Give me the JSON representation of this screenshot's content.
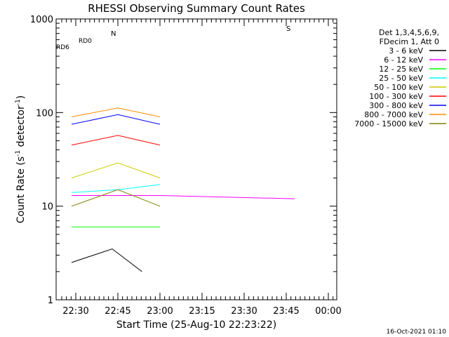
{
  "chart_data": {
    "type": "line",
    "title": "RHESSI Observing Summary Count Rates",
    "xlabel": "Start Time (25-Aug-10 22:23:22)",
    "ylabel_main": "Count Rate (s",
    "ylabel_sup1": "-1",
    "ylabel_mid": " detector",
    "ylabel_sup2": "-1",
    "ylabel_end": ")",
    "yscale": "log",
    "ylim": [
      1,
      1000
    ],
    "xlim_min": [
      0,
      100
    ],
    "x_ticks": [
      {
        "t": 7,
        "label": "22:30"
      },
      {
        "t": 22,
        "label": "22:45"
      },
      {
        "t": 37,
        "label": "23:00"
      },
      {
        "t": 52,
        "label": "23:15"
      },
      {
        "t": 67,
        "label": "23:30"
      },
      {
        "t": 82,
        "label": "23:45"
      },
      {
        "t": 97,
        "label": "00:00"
      }
    ],
    "y_ticks": [
      {
        "v": 1,
        "label": "1"
      },
      {
        "v": 10,
        "label": "10"
      },
      {
        "v": 100,
        "label": "100"
      },
      {
        "v": 1000,
        "label": "1000"
      }
    ],
    "legend_header": [
      "Det 1,3,4,5,6,9,",
      "FDecim 1, Att 0"
    ],
    "footer_date": "16-Oct-2021 01:10",
    "flag_labels": {
      "night": "N",
      "saa": "S",
      "rd0": "RD0",
      "rd6": "RD6"
    },
    "series": [
      {
        "name": "3 - 6 keV",
        "color": "#000000",
        "segments": [
          {
            "x": [
              5.5,
              20,
              30.6
            ],
            "y": [
              2.5,
              3.5,
              2.0
            ]
          }
        ]
      },
      {
        "name": "6 - 12 keV",
        "color": "#ff00ff",
        "segments": [
          {
            "x": [
              5.5,
              37,
              85
            ],
            "y": [
              13,
              13,
              12
            ]
          }
        ]
      },
      {
        "name": "12 - 25 keV",
        "color": "#00ff00",
        "segments": [
          {
            "x": [
              5.5,
              22,
              37
            ],
            "y": [
              6,
              6,
              6
            ]
          }
        ]
      },
      {
        "name": "25 - 50 keV",
        "color": "#00ffff",
        "segments": [
          {
            "x": [
              5.5,
              22,
              37
            ],
            "y": [
              14,
              15,
              17
            ]
          }
        ]
      },
      {
        "name": "50 - 100 keV",
        "color": "#cccc00",
        "segments": [
          {
            "x": [
              5.5,
              22,
              37
            ],
            "y": [
              20,
              29,
              20
            ]
          }
        ]
      },
      {
        "name": "100 - 300 keV",
        "color": "#ff0000",
        "segments": [
          {
            "x": [
              5.5,
              22,
              37
            ],
            "y": [
              45,
              57,
              45
            ]
          }
        ]
      },
      {
        "name": "300 - 800 keV",
        "color": "#0000ff",
        "segments": [
          {
            "x": [
              5.5,
              22,
              37
            ],
            "y": [
              75,
              95,
              75
            ]
          }
        ]
      },
      {
        "name": "800 - 7000 keV",
        "color": "#ff8c00",
        "segments": [
          {
            "x": [
              5.5,
              22,
              37
            ],
            "y": [
              90,
              112,
              90
            ]
          }
        ]
      },
      {
        "name": "7000 - 15000 keV",
        "color": "#808000",
        "segments": [
          {
            "x": [
              5.5,
              22,
              37
            ],
            "y": [
              10,
              15,
              10
            ]
          }
        ]
      }
    ]
  }
}
